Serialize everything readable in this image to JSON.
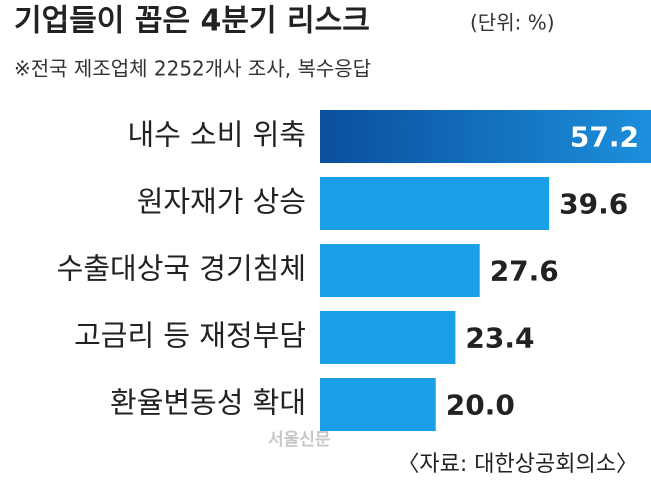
{
  "chart_data": {
    "type": "hbar",
    "title": "기업들이 꼽은 4분기 리스크",
    "unit": "(단위: %)",
    "subtitle": "※전국 제조업체 2252개사 조사, 복수응답",
    "categories": [
      "내수 소비 위축",
      "원자재가 상승",
      "수출대상국 경기침체",
      "고금리 등 재정부담",
      "환율변동성 확대"
    ],
    "values": [
      57.2,
      39.6,
      27.6,
      23.4,
      20.0
    ],
    "value_labels": [
      "57.2",
      "39.6",
      "27.6",
      "23.4",
      "20.0"
    ],
    "colors": [
      "#0b5fae",
      "#1a9fe6",
      "#1a9fe6",
      "#1a9fe6",
      "#1a9fe6"
    ],
    "source": "〈자료: 대한상공회의소〉",
    "watermark": "서울신문"
  }
}
